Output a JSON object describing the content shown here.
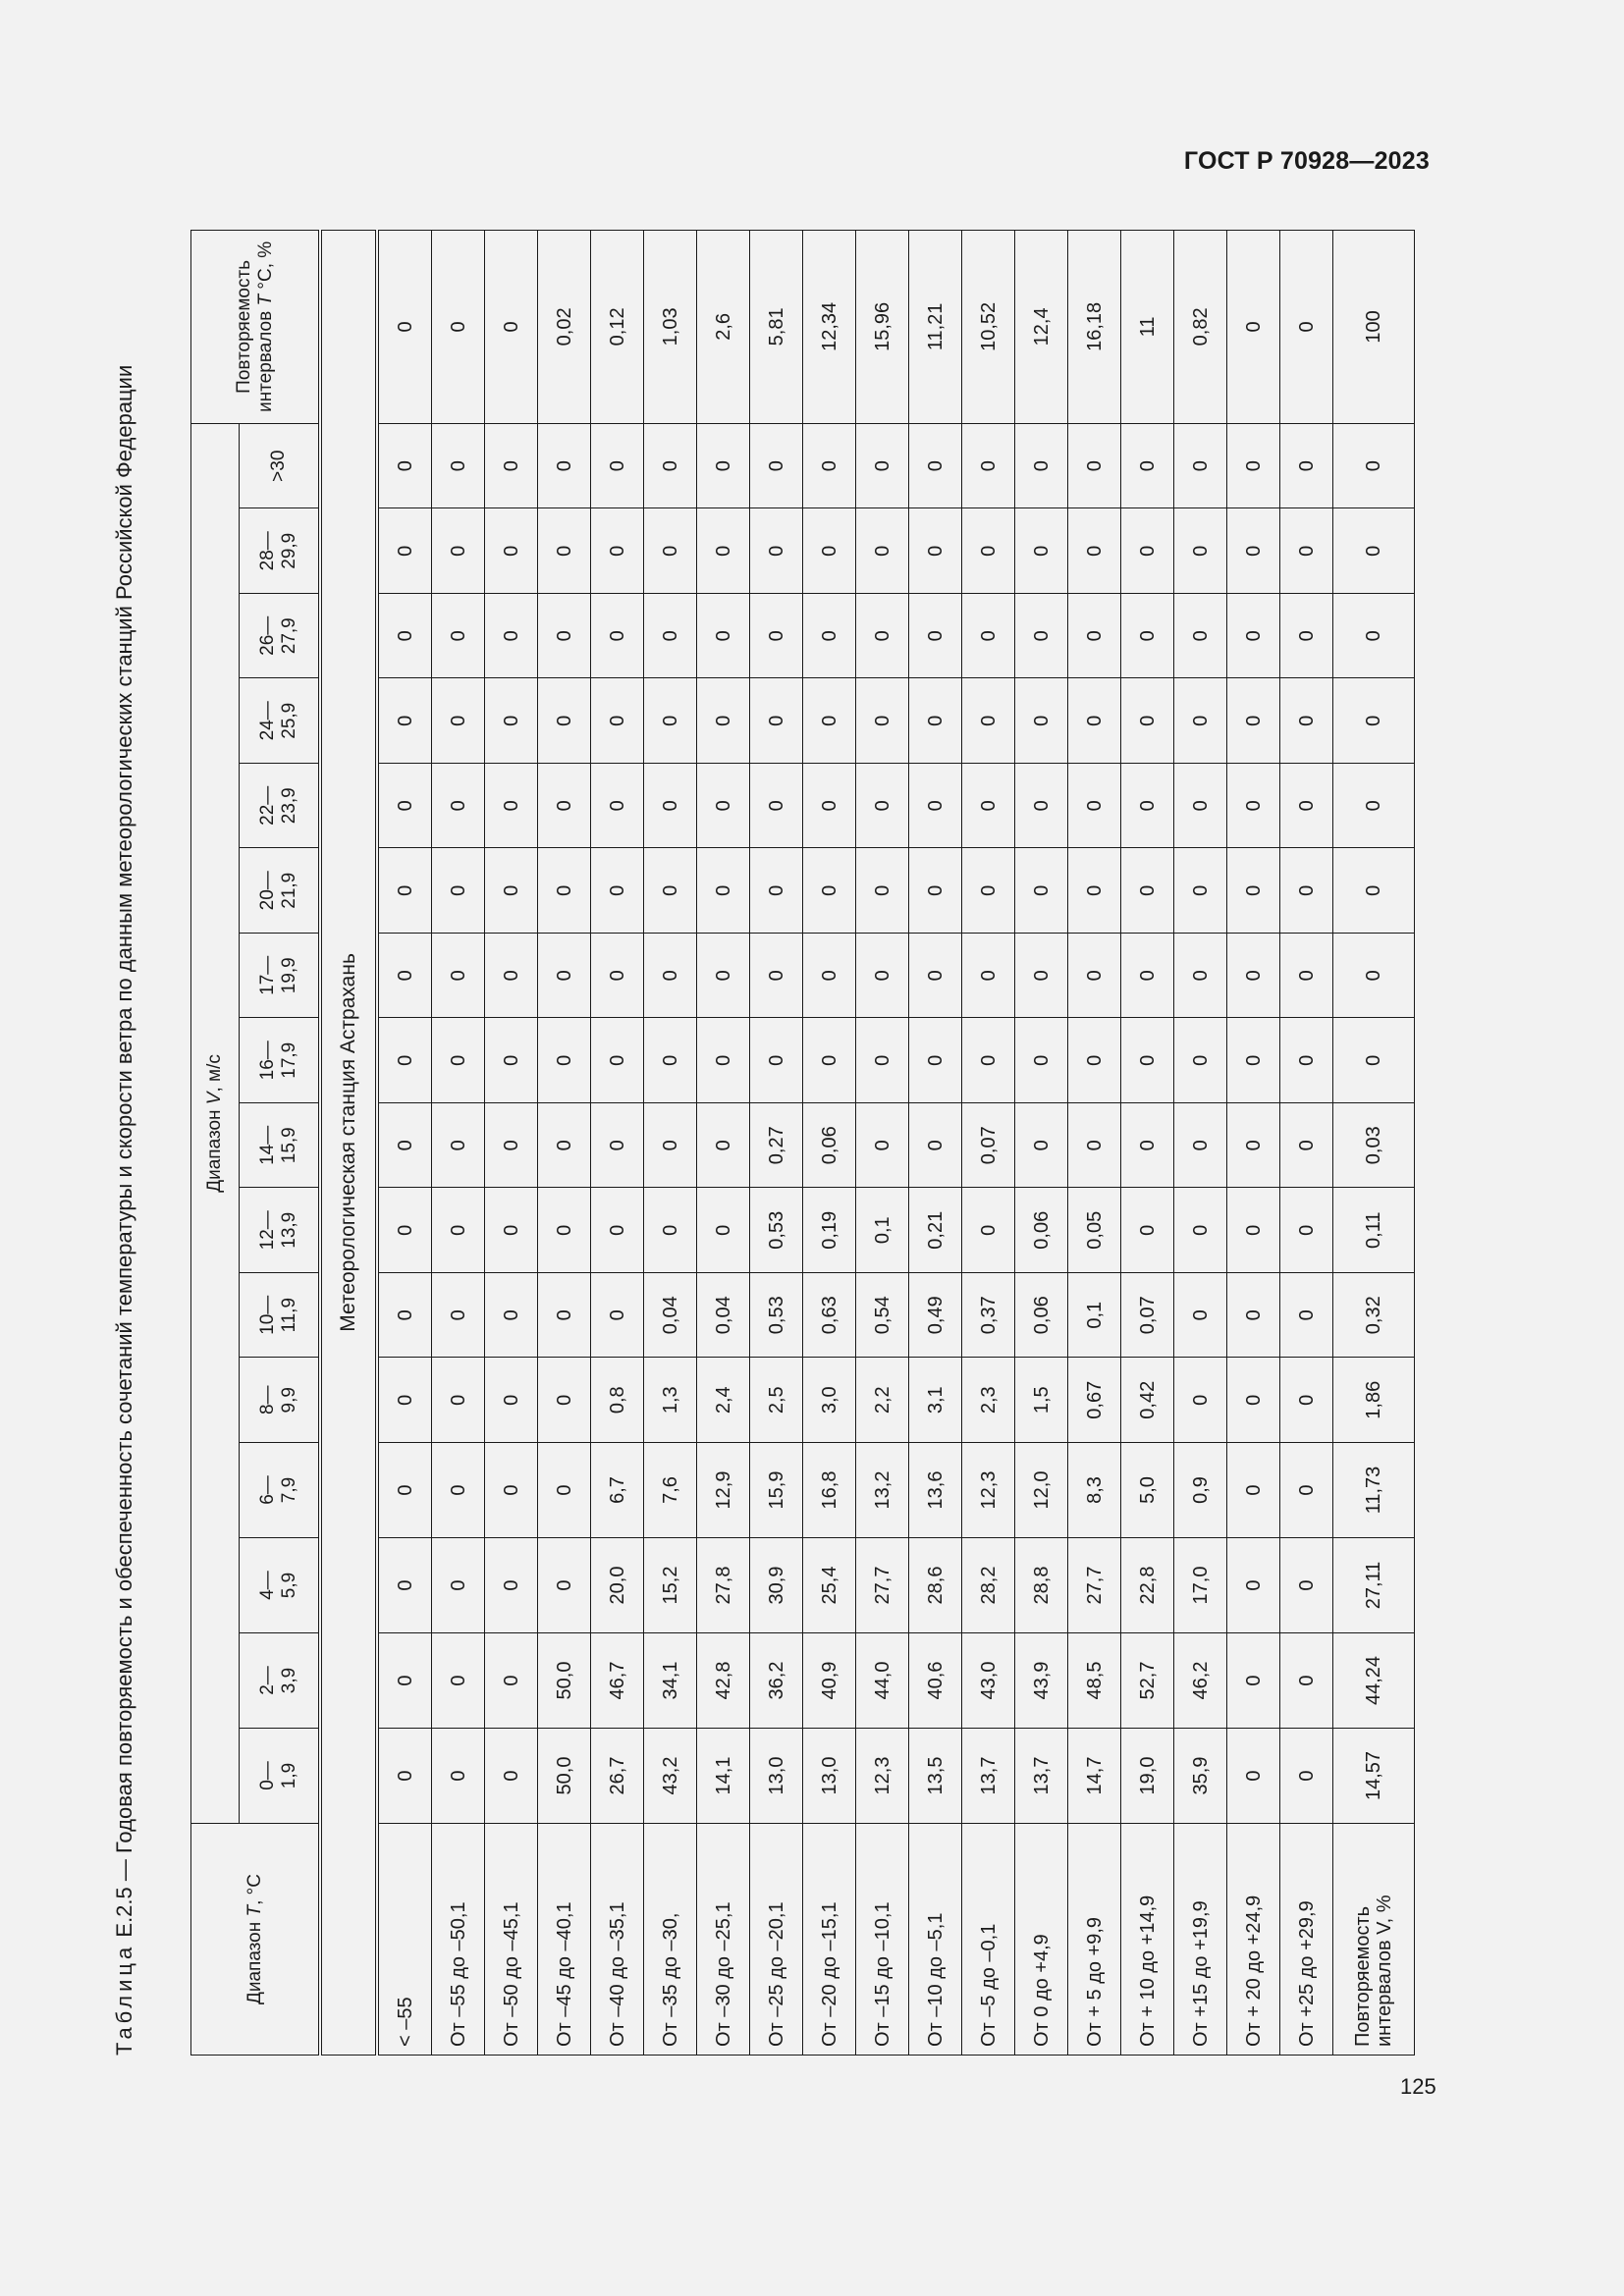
{
  "header": {
    "doc_code": "ГОСТ Р 70928—2023"
  },
  "footer": {
    "page_number": "125"
  },
  "caption": {
    "prefix": "Таблица",
    "number": "Е.2.5",
    "text": " — Годовая повторяемость и обеспеченность сочетаний температуры и скорости ветра по данным метеорологических станций Российской Федерации"
  },
  "table": {
    "temp_header": {
      "prefix": "Диапазон ",
      "var": "T",
      "suffix": ", °C"
    },
    "wind_header": {
      "prefix": "Диапазон ",
      "var": "V",
      "suffix": ", м/с"
    },
    "recurrence_header": {
      "prefix": "Повторяемость интервалов ",
      "var": "T",
      "suffix": " °C, %"
    },
    "wind_ranges": [
      [
        "0—",
        "1,9"
      ],
      [
        "2—",
        "3,9"
      ],
      [
        "4—",
        "5,9"
      ],
      [
        "6—",
        "7,9"
      ],
      [
        "8—",
        "9,9"
      ],
      [
        "10—",
        "11,9"
      ],
      [
        "12—",
        "13,9"
      ],
      [
        "14—",
        "15,9"
      ],
      [
        "16—",
        "17,9"
      ],
      [
        "17—",
        "19,9"
      ],
      [
        "20—",
        "21,9"
      ],
      [
        "22—",
        "23,9"
      ],
      [
        "24—",
        "25,9"
      ],
      [
        "26—",
        "27,9"
      ],
      [
        "28—",
        "29,9"
      ],
      [
        ">30",
        ""
      ]
    ],
    "station": "Метеорологическая станция Астрахань",
    "rows": [
      {
        "label": "< –55",
        "values": [
          "0",
          "0",
          "0",
          "0",
          "0",
          "0",
          "0",
          "0",
          "0",
          "0",
          "0",
          "0",
          "0",
          "0",
          "0",
          "0"
        ],
        "total": "0"
      },
      {
        "label": "От –55 до –50,1",
        "values": [
          "0",
          "0",
          "0",
          "0",
          "0",
          "0",
          "0",
          "0",
          "0",
          "0",
          "0",
          "0",
          "0",
          "0",
          "0",
          "0"
        ],
        "total": "0"
      },
      {
        "label": "От –50 до –45,1",
        "values": [
          "0",
          "0",
          "0",
          "0",
          "0",
          "0",
          "0",
          "0",
          "0",
          "0",
          "0",
          "0",
          "0",
          "0",
          "0",
          "0"
        ],
        "total": "0"
      },
      {
        "label": "От –45 до –40,1",
        "values": [
          "50,0",
          "50,0",
          "0",
          "0",
          "0",
          "0",
          "0",
          "0",
          "0",
          "0",
          "0",
          "0",
          "0",
          "0",
          "0",
          "0"
        ],
        "total": "0,02"
      },
      {
        "label": "От –40 до –35,1",
        "values": [
          "26,7",
          "46,7",
          "20,0",
          "6,7",
          "0,8",
          "0",
          "0",
          "0",
          "0",
          "0",
          "0",
          "0",
          "0",
          "0",
          "0",
          "0"
        ],
        "total": "0,12"
      },
      {
        "label": "От –35 до –30,",
        "values": [
          "43,2",
          "34,1",
          "15,2",
          "7,6",
          "1,3",
          "0,04",
          "0",
          "0",
          "0",
          "0",
          "0",
          "0",
          "0",
          "0",
          "0",
          "0"
        ],
        "total": "1,03"
      },
      {
        "label": "От –30 до –25,1",
        "values": [
          "14,1",
          "42,8",
          "27,8",
          "12,9",
          "2,4",
          "0,04",
          "0",
          "0",
          "0",
          "0",
          "0",
          "0",
          "0",
          "0",
          "0",
          "0"
        ],
        "total": "2,6"
      },
      {
        "label": "От –25 до –20,1",
        "values": [
          "13,0",
          "36,2",
          "30,9",
          "15,9",
          "2,5",
          "0,53",
          "0,53",
          "0,27",
          "0",
          "0",
          "0",
          "0",
          "0",
          "0",
          "0",
          "0"
        ],
        "total": "5,81"
      },
      {
        "label": "От –20 до –15,1",
        "values": [
          "13,0",
          "40,9",
          "25,4",
          "16,8",
          "3,0",
          "0,63",
          "0,19",
          "0,06",
          "0",
          "0",
          "0",
          "0",
          "0",
          "0",
          "0",
          "0"
        ],
        "total": "12,34"
      },
      {
        "label": "От –15 до –10,1",
        "values": [
          "12,3",
          "44,0",
          "27,7",
          "13,2",
          "2,2",
          "0,54",
          "0,1",
          "0",
          "0",
          "0",
          "0",
          "0",
          "0",
          "0",
          "0",
          "0"
        ],
        "total": "15,96"
      },
      {
        "label": "От –10 до –5,1",
        "values": [
          "13,5",
          "40,6",
          "28,6",
          "13,6",
          "3,1",
          "0,49",
          "0,21",
          "0",
          "0",
          "0",
          "0",
          "0",
          "0",
          "0",
          "0",
          "0"
        ],
        "total": "11,21"
      },
      {
        "label": "От –5 до –0,1",
        "values": [
          "13,7",
          "43,0",
          "28,2",
          "12,3",
          "2,3",
          "0,37",
          "0",
          "0,07",
          "0",
          "0",
          "0",
          "0",
          "0",
          "0",
          "0",
          "0"
        ],
        "total": "10,52"
      },
      {
        "label": "От 0 до +4,9",
        "values": [
          "13,7",
          "43,9",
          "28,8",
          "12,0",
          "1,5",
          "0,06",
          "0,06",
          "0",
          "0",
          "0",
          "0",
          "0",
          "0",
          "0",
          "0",
          "0"
        ],
        "total": "12,4"
      },
      {
        "label": "От + 5 до +9,9",
        "values": [
          "14,7",
          "48,5",
          "27,7",
          "8,3",
          "0,67",
          "0,1",
          "0,05",
          "0",
          "0",
          "0",
          "0",
          "0",
          "0",
          "0",
          "0",
          "0"
        ],
        "total": "16,18"
      },
      {
        "label": "От + 10 до +14,9",
        "values": [
          "19,0",
          "52,7",
          "22,8",
          "5,0",
          "0,42",
          "0,07",
          "0",
          "0",
          "0",
          "0",
          "0",
          "0",
          "0",
          "0",
          "0",
          "0"
        ],
        "total": "11"
      },
      {
        "label": "От +15 до +19,9",
        "values": [
          "35,9",
          "46,2",
          "17,0",
          "0,9",
          "0",
          "0",
          "0",
          "0",
          "0",
          "0",
          "0",
          "0",
          "0",
          "0",
          "0",
          "0"
        ],
        "total": "0,82"
      },
      {
        "label": "От + 20 до +24,9",
        "values": [
          "0",
          "0",
          "0",
          "0",
          "0",
          "0",
          "0",
          "0",
          "0",
          "0",
          "0",
          "0",
          "0",
          "0",
          "0",
          "0"
        ],
        "total": "0"
      },
      {
        "label": "От +25 до +29,9",
        "values": [
          "0",
          "0",
          "0",
          "0",
          "0",
          "0",
          "0",
          "0",
          "0",
          "0",
          "0",
          "0",
          "0",
          "0",
          "0",
          "0"
        ],
        "total": "0"
      }
    ],
    "total_row": {
      "label": "Повторяемость интервалов V, %",
      "values": [
        "14,57",
        "44,24",
        "27,11",
        "11,73",
        "1,86",
        "0,32",
        "0,11",
        "0,03",
        "0",
        "0",
        "0",
        "0",
        "0",
        "0",
        "0",
        "0"
      ],
      "total": "100"
    }
  }
}
